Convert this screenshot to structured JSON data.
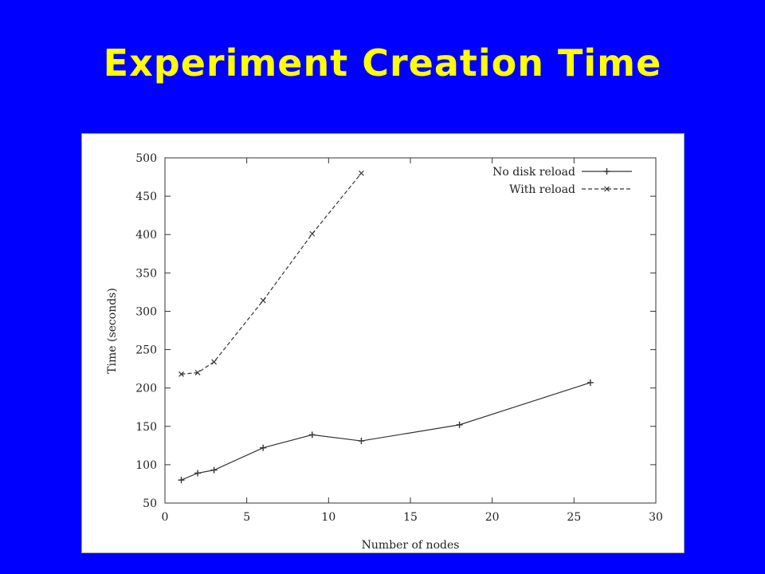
{
  "slide": {
    "title": "Experiment Creation Time"
  },
  "colors": {
    "background": "#0000ff",
    "title": "#ffff00",
    "plot_line": "#333333"
  },
  "chart_data": {
    "type": "line",
    "title": "",
    "xlabel": "Number of nodes",
    "ylabel": "Time (seconds)",
    "xlim": [
      0,
      30
    ],
    "ylim": [
      50,
      500
    ],
    "x_ticks": [
      0,
      5,
      10,
      15,
      20,
      25,
      30
    ],
    "y_ticks": [
      50,
      100,
      150,
      200,
      250,
      300,
      350,
      400,
      450,
      500
    ],
    "grid": false,
    "legend_position": "top-right",
    "series": [
      {
        "name": "No disk reload",
        "marker": "+",
        "line_style": "solid",
        "x": [
          1,
          2,
          3,
          6,
          9,
          12,
          18,
          26
        ],
        "y": [
          80,
          89,
          93,
          122,
          139,
          131,
          152,
          207
        ]
      },
      {
        "name": "With reload",
        "marker": "x",
        "line_style": "dashed",
        "x": [
          1,
          2,
          3,
          6,
          9,
          12
        ],
        "y": [
          218,
          220,
          234,
          314,
          401,
          480
        ]
      }
    ]
  }
}
